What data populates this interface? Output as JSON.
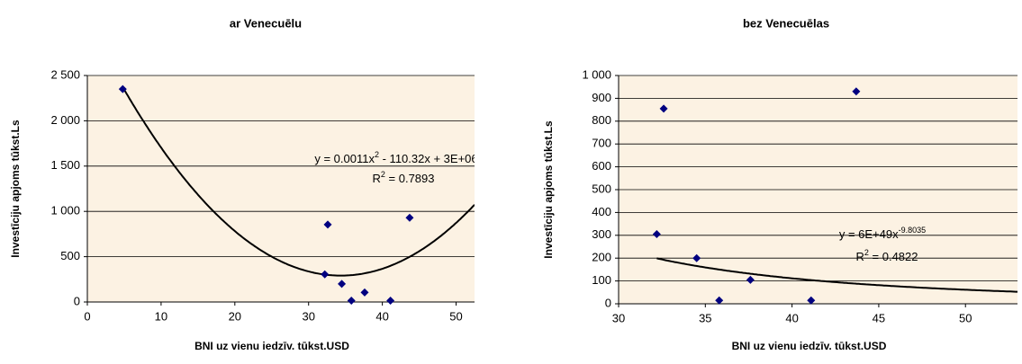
{
  "chart_data": [
    {
      "type": "scatter",
      "title": "ar Venecuēlu",
      "x_label": "BNI uz vienu iedzīv. tūkst.USD",
      "y_label": "Investīciju apjoms tūkst.Ls",
      "x": [
        4.8,
        32.2,
        32.6,
        34.5,
        35.8,
        37.6,
        41.1,
        43.7
      ],
      "values": [
        2350,
        305,
        855,
        200,
        15,
        105,
        15,
        930
      ],
      "color": "#000080",
      "trendline": "polynomial",
      "equation": [
        "y = 0.0011x",
        "2",
        " - 110.32x + 3E+06"
      ],
      "r_squared": [
        "R",
        "2",
        " = 0.7893"
      ],
      "xlim": [
        0,
        52.5
      ],
      "xticks": [
        0,
        10,
        20,
        30,
        40,
        50
      ],
      "ylim": [
        0,
        2500
      ],
      "yticks": [
        0,
        500,
        {
          "value": 1000,
          "label": "1 000"
        },
        {
          "value": 1500,
          "label": "1 500"
        },
        {
          "value": 2000,
          "label": "2 000"
        },
        {
          "value": 2500,
          "label": "2 500"
        }
      ],
      "grid": true
    },
    {
      "type": "scatter",
      "title": "bez Venecuēlas",
      "x_label": "BNI uz vienu iedzīv. tūkst.USD",
      "y_label": "Investīciju apjoms tūkst.Ls",
      "x": [
        32.2,
        32.6,
        34.5,
        35.8,
        37.6,
        41.1,
        43.7
      ],
      "values": [
        305,
        855,
        200,
        15,
        105,
        15,
        930
      ],
      "color": "#000080",
      "trendline": "power",
      "equation": [
        "y = 6E+49x",
        "-9.8035",
        ""
      ],
      "r_squared": [
        "R",
        "2",
        " = 0.4822"
      ],
      "xlim": [
        30,
        53
      ],
      "xticks": [
        30,
        35,
        40,
        45,
        50
      ],
      "ylim": [
        0,
        1000
      ],
      "yticks": [
        0,
        100,
        200,
        300,
        400,
        500,
        600,
        700,
        800,
        900,
        {
          "value": 1000,
          "label": "1 000"
        }
      ],
      "grid": true
    }
  ]
}
